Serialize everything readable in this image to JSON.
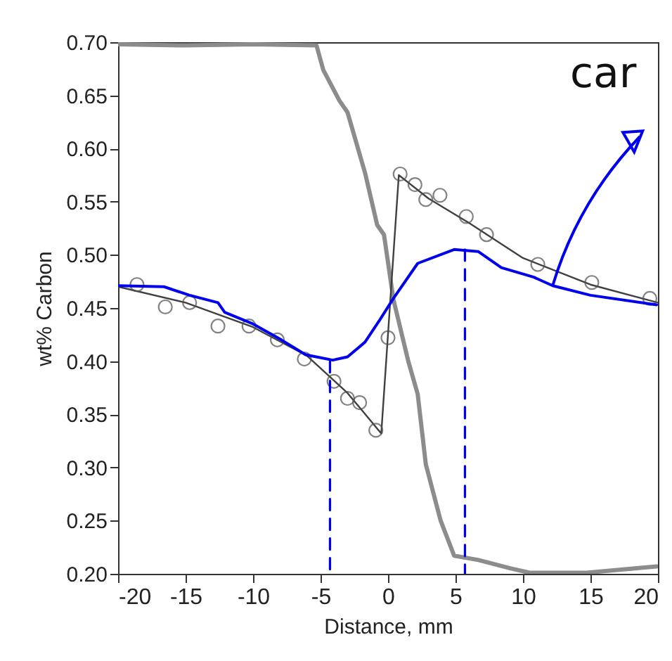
{
  "chart_data": {
    "type": "line",
    "xlabel": "Distance, mm",
    "ylabel": "wt% Carbon",
    "xlim": [
      -20,
      20
    ],
    "xticks": [
      -20,
      -15,
      -10,
      -5,
      0,
      5,
      10,
      15,
      20
    ],
    "ylim": [
      0.2,
      0.7
    ],
    "yticks": [
      {
        "value": 0.2,
        "label": "0.20"
      },
      {
        "value": 0.25,
        "label": "0.25"
      },
      {
        "value": 0.3,
        "label": "0.30"
      },
      {
        "value": 0.35,
        "label": "0.35"
      },
      {
        "value": 0.4,
        "label": "0.40"
      },
      {
        "value": 0.45,
        "label": "0.45"
      },
      {
        "value": 0.5,
        "label": "0.50"
      },
      {
        "value": 0.55,
        "label": "0.55"
      },
      {
        "value": 0.6,
        "label": "0.60"
      },
      {
        "value": 0.65,
        "label": "0.65"
      },
      {
        "value": 0.7,
        "label": "0.70"
      }
    ],
    "grid": false,
    "annotations": [
      {
        "text": "car",
        "x": 12.2,
        "y": 0.471
      }
    ],
    "series": [
      {
        "type": "line",
        "color": "#8c8c8c",
        "x": [
          -20,
          -15,
          -10,
          -5.3,
          -4.8,
          -3.6,
          -3.0,
          -1.7,
          -0.8,
          -0.3,
          0.4,
          1.5,
          2.2,
          2.8,
          3.9,
          4.9,
          6.7,
          9.1,
          10.5,
          14.7,
          19.9
        ],
        "values": [
          0.698,
          0.697,
          0.698,
          0.697,
          0.674,
          0.645,
          0.634,
          0.577,
          0.528,
          0.519,
          0.458,
          0.4,
          0.369,
          0.303,
          0.25,
          0.217,
          0.213,
          0.205,
          0.201,
          0.201,
          0.207
        ]
      },
      {
        "type": "line",
        "color": "#404040",
        "x": [
          -20,
          -15,
          -10,
          -6,
          -3,
          -0.5,
          0.8,
          3,
          6,
          10,
          15,
          20
        ],
        "values": [
          0.47,
          0.455,
          0.432,
          0.405,
          0.37,
          0.332,
          0.575,
          0.553,
          0.53,
          0.497,
          0.472,
          0.455
        ]
      },
      {
        "type": "scatter",
        "color": "#505050",
        "marker": "circle",
        "x": [
          -18.6,
          -16.5,
          -14.7,
          -12.6,
          -10.3,
          -8.2,
          -6.2,
          -4.0,
          -3.0,
          -2.1,
          -0.9,
          0,
          0.9,
          2.0,
          2.8,
          3.85,
          5.8,
          7.3,
          11.1,
          15.1,
          19.4
        ],
        "values": [
          0.472,
          0.451,
          0.455,
          0.433,
          0.433,
          0.42,
          0.402,
          0.381,
          0.365,
          0.361,
          0.335,
          0.422,
          0.576,
          0.566,
          0.552,
          0.556,
          0.536,
          0.519,
          0.491,
          0.474,
          0.459
        ]
      },
      {
        "type": "line",
        "color": "#0000ee",
        "x": [
          -20,
          -16.6,
          -14.7,
          -12.6,
          -12.1,
          -10,
          -7.9,
          -6.1,
          -4.1,
          -3.0,
          -1.7,
          -0.6,
          0.4,
          2.2,
          4.9,
          6.7,
          8.4,
          10.8,
          12.2,
          15,
          19.9
        ],
        "values": [
          0.471,
          0.47,
          0.462,
          0.455,
          0.446,
          0.435,
          0.42,
          0.406,
          0.401,
          0.404,
          0.418,
          0.439,
          0.459,
          0.492,
          0.505,
          0.503,
          0.488,
          0.479,
          0.471,
          0.462,
          0.453
        ]
      },
      {
        "type": "line",
        "color": "#0000ee",
        "line_style": "dashed",
        "x": [
          -4.3,
          -4.3
        ],
        "values": [
          0.4,
          0.2
        ]
      },
      {
        "type": "line",
        "color": "#0000ee",
        "line_style": "dashed",
        "x": [
          5.7,
          5.7
        ],
        "values": [
          0.505,
          0.2
        ]
      }
    ]
  }
}
